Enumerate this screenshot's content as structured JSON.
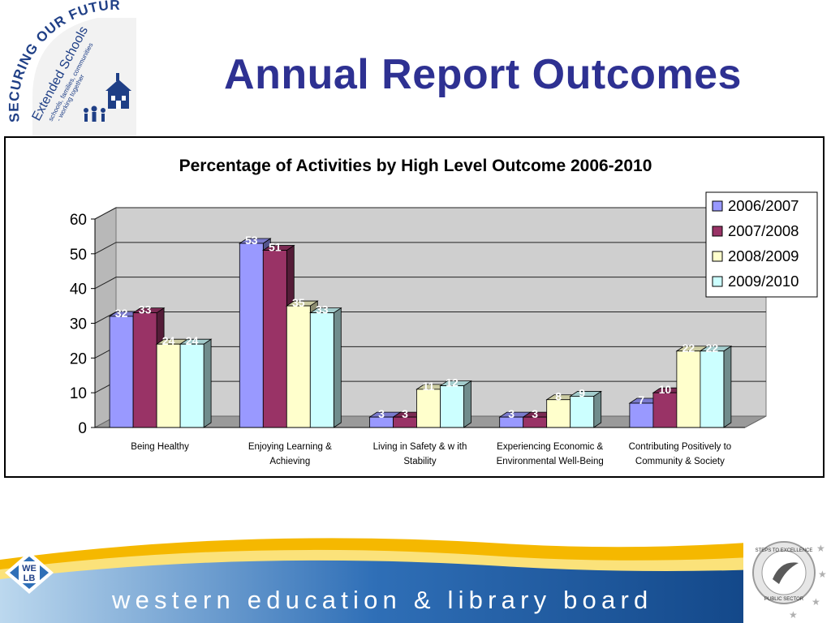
{
  "slide": {
    "title": "Annual Report Outcomes",
    "logo_text": {
      "arc": "SECURING OUR FUTURE",
      "name": "Extended Schools",
      "tagline1": "schools, families, communities",
      "tagline2": "- working together"
    },
    "footer": {
      "organisation": "western education & library board",
      "badge_we": "WE",
      "badge_lb": "LB",
      "seal_top": "STEPS TO EXCELLENCE",
      "seal_bottom": "PUBLIC SECTOR"
    }
  },
  "colors": {
    "title": "#2e3192",
    "series": [
      "#9999ff",
      "#993366",
      "#ffffcc",
      "#ccffff"
    ]
  },
  "chart_data": {
    "type": "bar",
    "title": "Percentage of Activities by High Level Outcome 2006-2010",
    "xlabel": "",
    "ylabel": "",
    "ylim": [
      0,
      60
    ],
    "yticks": [
      "0",
      "10",
      "20",
      "30",
      "40",
      "50",
      "60"
    ],
    "grid": true,
    "legend": "top-right",
    "categories": [
      [
        "Being Healthy"
      ],
      [
        "Enjoying Learning &",
        "Achieving"
      ],
      [
        "Living in Safety & w ith",
        "Stability"
      ],
      [
        "Experiencing Economic &",
        "Environmental Well-Being"
      ],
      [
        "Contributing Positively to",
        "Community & Society"
      ]
    ],
    "series": [
      {
        "name": "2006/2007",
        "values": [
          32,
          53,
          3,
          3,
          7
        ]
      },
      {
        "name": "2007/2008",
        "values": [
          33,
          51,
          3,
          3,
          10
        ]
      },
      {
        "name": "2008/2009",
        "values": [
          24,
          35,
          11,
          8,
          22
        ]
      },
      {
        "name": "2009/2010",
        "values": [
          24,
          33,
          12,
          9,
          22
        ]
      }
    ]
  }
}
